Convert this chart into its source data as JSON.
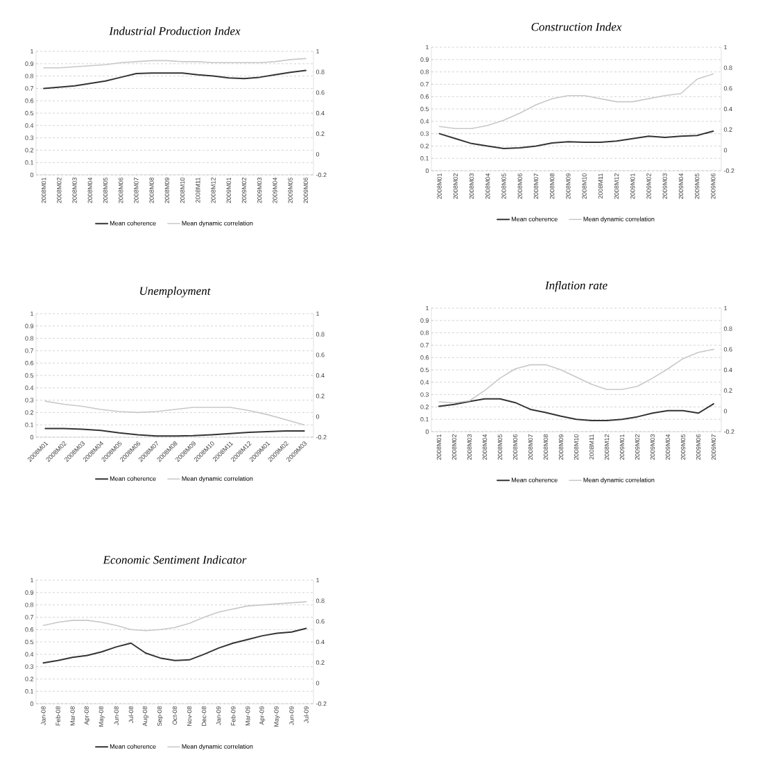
{
  "chart_data": [
    {
      "type": "line",
      "title": "Industrial Production Index",
      "categories": [
        "2008M01",
        "2008M02",
        "2008M03",
        "2008M04",
        "2008M05",
        "2008M06",
        "2008M07",
        "2008M08",
        "2008M09",
        "2008M10",
        "2008M11",
        "2008M12",
        "2009M01",
        "2009M02",
        "2009M03",
        "2009M04",
        "2009M05",
        "2009M06"
      ],
      "series": [
        {
          "name": "Mean coherence",
          "color": "#333333",
          "values": [
            0.7,
            0.71,
            0.72,
            0.74,
            0.76,
            0.79,
            0.82,
            0.825,
            0.825,
            0.825,
            0.81,
            0.8,
            0.785,
            0.78,
            0.79,
            0.81,
            0.83,
            0.845
          ]
        },
        {
          "name": "Mean dynamic correlation",
          "color": "#c8c8c8",
          "axis": "y2",
          "values": [
            0.84,
            0.84,
            0.85,
            0.86,
            0.87,
            0.89,
            0.9,
            0.91,
            0.91,
            0.9,
            0.9,
            0.89,
            0.89,
            0.89,
            0.89,
            0.9,
            0.92,
            0.93
          ]
        }
      ],
      "ylim": [
        0,
        1
      ],
      "yticks": [
        0,
        0.1,
        0.2,
        0.3,
        0.4,
        0.5,
        0.6,
        0.7,
        0.8,
        0.9,
        1
      ],
      "y2lim": [
        -0.2,
        1
      ],
      "y2ticks": [
        -0.2,
        0,
        0.2,
        0.4,
        0.6,
        0.8,
        1
      ],
      "grid": "y",
      "legend": "bottom"
    },
    {
      "type": "line",
      "title": "Construction  Index",
      "categories": [
        "2008M01",
        "2008M02",
        "2008M03",
        "2008M04",
        "2008M05",
        "2008M06",
        "2008M07",
        "2008M08",
        "2008M09",
        "2008M10",
        "2008M11",
        "2008M12",
        "2009M01",
        "2009M02",
        "2009M03",
        "2009M04",
        "2009M05",
        "2009M06"
      ],
      "series": [
        {
          "name": "Mean coherence",
          "color": "#333333",
          "values": [
            0.3,
            0.26,
            0.22,
            0.2,
            0.18,
            0.185,
            0.2,
            0.225,
            0.235,
            0.23,
            0.23,
            0.24,
            0.26,
            0.28,
            0.27,
            0.28,
            0.285,
            0.32
          ]
        },
        {
          "name": "Mean dynamic correlation",
          "color": "#c8c8c8",
          "axis": "y2",
          "values": [
            0.23,
            0.21,
            0.21,
            0.24,
            0.29,
            0.36,
            0.44,
            0.5,
            0.53,
            0.53,
            0.5,
            0.47,
            0.47,
            0.5,
            0.53,
            0.55,
            0.69,
            0.74
          ]
        }
      ],
      "ylim": [
        0,
        1
      ],
      "yticks": [
        0,
        0.1,
        0.2,
        0.3,
        0.4,
        0.5,
        0.6,
        0.7,
        0.8,
        0.9,
        1
      ],
      "y2lim": [
        -0.2,
        1
      ],
      "y2ticks": [
        -0.2,
        0,
        0.2,
        0.4,
        0.6,
        0.8,
        1
      ],
      "grid": "y",
      "legend": "bottom"
    },
    {
      "type": "line",
      "title": "Unemployment",
      "categories": [
        "2008M01",
        "2008M02",
        "2008M03",
        "2008M04",
        "2008M05",
        "2008M06",
        "2008M07",
        "2008M08",
        "2008M09",
        "2008M10",
        "2008M11",
        "2008M12",
        "2009M01",
        "2009M02",
        "2009M03"
      ],
      "series": [
        {
          "name": "Mean coherence",
          "color": "#333333",
          "values": [
            0.07,
            0.07,
            0.065,
            0.055,
            0.035,
            0.02,
            0.01,
            0.01,
            0.012,
            0.02,
            0.03,
            0.04,
            0.045,
            0.05,
            0.05
          ]
        },
        {
          "name": "Mean dynamic correlation",
          "color": "#c8c8c8",
          "axis": "y2",
          "values": [
            0.15,
            0.12,
            0.1,
            0.07,
            0.05,
            0.04,
            0.05,
            0.07,
            0.09,
            0.09,
            0.09,
            0.06,
            0.02,
            -0.03,
            -0.08
          ]
        }
      ],
      "ylim": [
        0,
        1
      ],
      "yticks": [
        0,
        0.1,
        0.2,
        0.3,
        0.4,
        0.5,
        0.6,
        0.7,
        0.8,
        0.9,
        1
      ],
      "y2lim": [
        -0.2,
        1
      ],
      "y2ticks": [
        -0.2,
        0,
        0.2,
        0.4,
        0.6,
        0.8,
        1
      ],
      "grid": "y",
      "legend": "bottom"
    },
    {
      "type": "line",
      "title": "Inflation rate",
      "categories": [
        "2008M01",
        "2008M02",
        "2008M03",
        "2008M04",
        "2008M05",
        "2008M06",
        "2008M07",
        "2008M08",
        "2008M09",
        "2008M10",
        "2008M11",
        "2008M12",
        "2009M01",
        "2009M02",
        "2009M03",
        "2009M04",
        "2009M05",
        "2009M06",
        "2009M07"
      ],
      "series": [
        {
          "name": "Mean coherence",
          "color": "#333333",
          "values": [
            0.205,
            0.22,
            0.245,
            0.265,
            0.265,
            0.235,
            0.18,
            0.155,
            0.125,
            0.1,
            0.09,
            0.09,
            0.1,
            0.12,
            0.15,
            0.17,
            0.17,
            0.15,
            0.225
          ]
        },
        {
          "name": "Mean dynamic correlation",
          "color": "#c8c8c8",
          "axis": "y2",
          "values": [
            0.09,
            0.08,
            0.1,
            0.2,
            0.32,
            0.41,
            0.45,
            0.45,
            0.4,
            0.33,
            0.26,
            0.21,
            0.21,
            0.24,
            0.32,
            0.41,
            0.51,
            0.57,
            0.6
          ]
        }
      ],
      "ylim": [
        0,
        1
      ],
      "yticks": [
        0,
        0.1,
        0.2,
        0.3,
        0.4,
        0.5,
        0.6,
        0.7,
        0.8,
        0.9,
        1
      ],
      "y2lim": [
        -0.2,
        1
      ],
      "y2ticks": [
        -0.2,
        0,
        0.2,
        0.4,
        0.6,
        0.8,
        1
      ],
      "grid": "y",
      "legend": "bottom"
    },
    {
      "type": "line",
      "title": "Economic Sentiment Indicator",
      "categories": [
        "Jan-08",
        "Feb-08",
        "Mar-08",
        "Apr-08",
        "May-08",
        "Jun-08",
        "Jul-08",
        "Aug-08",
        "Sep-08",
        "Oct-08",
        "Nov-08",
        "Dec-08",
        "Jan-09",
        "Feb-09",
        "Mar-09",
        "Apr-09",
        "May-09",
        "Jun-09",
        "Jul-09"
      ],
      "series": [
        {
          "name": "Mean coherence",
          "color": "#333333",
          "values": [
            0.33,
            0.35,
            0.375,
            0.39,
            0.42,
            0.46,
            0.49,
            0.41,
            0.37,
            0.35,
            0.355,
            0.4,
            0.45,
            0.49,
            0.52,
            0.55,
            0.57,
            0.58,
            0.61
          ]
        },
        {
          "name": "Mean dynamic correlation",
          "color": "#c8c8c8",
          "axis": "y2",
          "values": [
            0.56,
            0.59,
            0.61,
            0.61,
            0.59,
            0.56,
            0.52,
            0.51,
            0.52,
            0.54,
            0.58,
            0.64,
            0.69,
            0.72,
            0.75,
            0.76,
            0.77,
            0.78,
            0.79
          ]
        }
      ],
      "ylim": [
        0,
        1
      ],
      "yticks": [
        0,
        0.1,
        0.2,
        0.3,
        0.4,
        0.5,
        0.6,
        0.7,
        0.8,
        0.9,
        1
      ],
      "y2lim": [
        -0.2,
        1
      ],
      "y2ticks": [
        -0.2,
        0,
        0.2,
        0.4,
        0.6,
        0.8,
        1
      ],
      "grid": "y",
      "legend": "bottom"
    }
  ]
}
